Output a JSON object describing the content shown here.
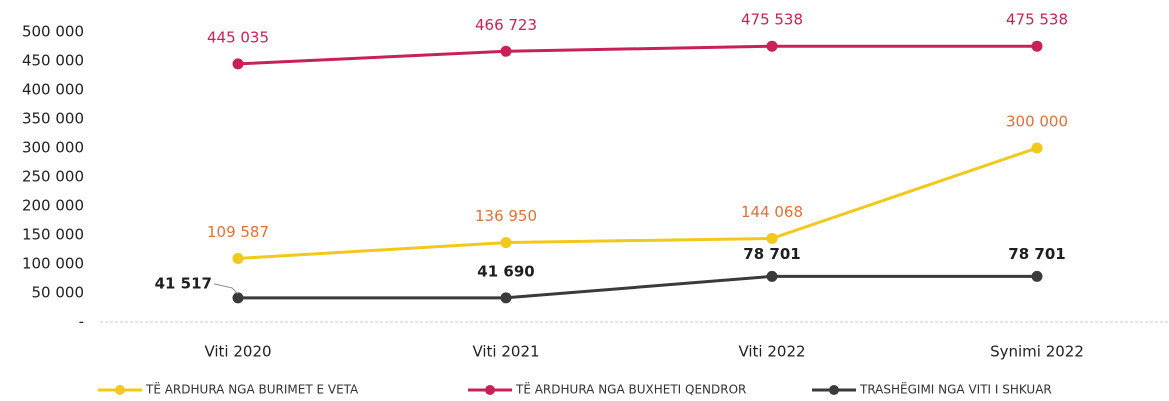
{
  "chart_data": {
    "type": "line",
    "categories": [
      "Viti 2020",
      "Viti 2021",
      "Viti 2022",
      "Synimi 2022"
    ],
    "series": [
      {
        "name": "TË ARDHURA NGA BURIMET E VETA",
        "color": "#f2c81a",
        "label_color": "#e0713a",
        "values": [
          109587,
          136950,
          144068,
          300000
        ],
        "value_labels": [
          "109 587",
          "136 950",
          "144 068",
          "300 000"
        ]
      },
      {
        "name": "TË ARDHURA NGA BUXHETI QENDROR",
        "color": "#c8215a",
        "label_color": "#c8215a",
        "values": [
          445035,
          466723,
          475538,
          475538
        ],
        "value_labels": [
          "445 035",
          "466 723",
          "475 538",
          "475 538"
        ]
      },
      {
        "name": "TRASHËGIMI NGA VITI I SHKUAR",
        "color": "#3a3a3a",
        "label_color": "#1e1e1e",
        "values": [
          41517,
          41690,
          78701,
          78701
        ],
        "value_labels": [
          "41 517",
          "41 690",
          "78 701",
          "78 701"
        ]
      }
    ],
    "ylim": [
      0,
      500000
    ],
    "yticks": [
      {
        "value": 0,
        "label": "-"
      },
      {
        "value": 50000,
        "label": "50 000"
      },
      {
        "value": 100000,
        "label": "100 000"
      },
      {
        "value": 150000,
        "label": "150 000"
      },
      {
        "value": 200000,
        "label": "200 000"
      },
      {
        "value": 250000,
        "label": "250 000"
      },
      {
        "value": 300000,
        "label": "300 000"
      },
      {
        "value": 350000,
        "label": "350 000"
      },
      {
        "value": 400000,
        "label": "400 000"
      },
      {
        "value": 450000,
        "label": "450 000"
      },
      {
        "value": 500000,
        "label": "500 000"
      }
    ],
    "legend": "bottom"
  }
}
